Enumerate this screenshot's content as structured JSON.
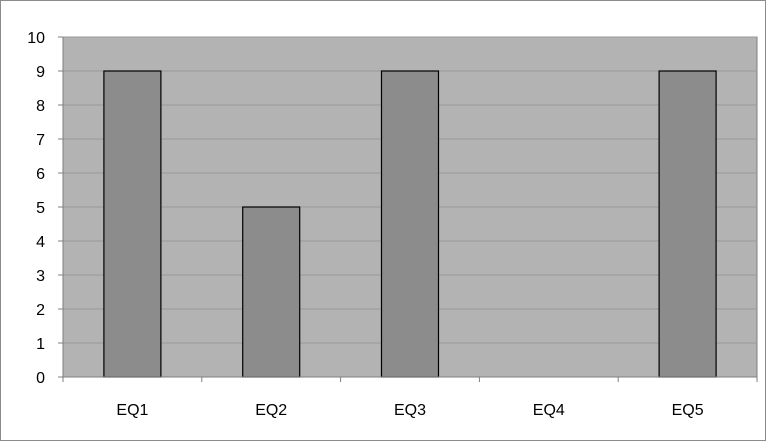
{
  "chart_data": {
    "type": "bar",
    "categories": [
      "EQ1",
      "EQ2",
      "EQ3",
      "EQ4",
      "EQ5"
    ],
    "values": [
      9,
      5,
      9,
      0,
      9
    ],
    "ylim": [
      0,
      10
    ],
    "yticks": [
      0,
      1,
      2,
      3,
      4,
      5,
      6,
      7,
      8,
      9,
      10
    ],
    "grid": true,
    "legend": "none",
    "colors": {
      "plot_background": "#b3b3b3",
      "bar_fill": "#8c8c8c",
      "bar_stroke": "#000000",
      "gridline": "#999999",
      "axis": "#7f7f7f"
    }
  }
}
